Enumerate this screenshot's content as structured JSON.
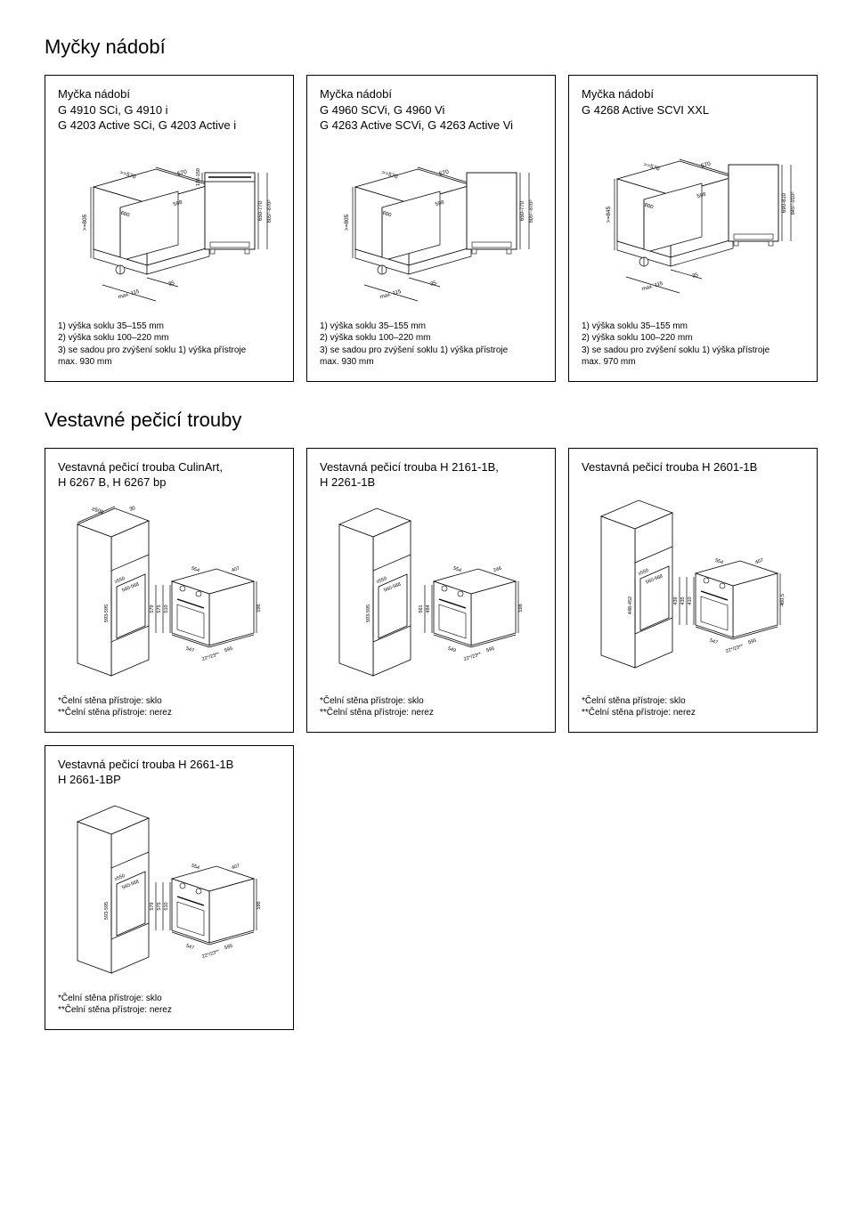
{
  "sections": {
    "dishwashers": {
      "heading": "Myčky nádobí",
      "cards": [
        {
          "title": "Myčka nádobí\nG 4910 SCi, G 4910 i\nG 4203 Active SCi, G 4203 Active i",
          "dims": {
            "width_top": "570",
            "depth_min": ">=570",
            "depth": "598",
            "depth2": "600",
            "left_h": ">=805",
            "panel_h": "116-150",
            "appliance_h": "650-770",
            "appliance_h2": "805¹⁾-870²⁾",
            "plinth_gap": "35",
            "kick": "max. 115"
          },
          "notes": "1) výška soklu 35–155 mm\n2) výška soklu 100–220 mm\n3) se sadou pro zvýšení soklu 1) výška přístroje\n    max. 930 mm"
        },
        {
          "title": "Myčka nádobí\nG 4960 SCVi, G 4960 Vi\nG 4263 Active SCVi, G 4263 Active Vi",
          "dims": {
            "width_top": "570",
            "depth_min": ">=570",
            "depth": "598",
            "depth2": "600",
            "left_h": ">=805",
            "panel_h": "",
            "appliance_h": "650-770",
            "appliance_h2": "805¹⁾-870²⁾",
            "plinth_gap": "35",
            "kick": "max. 115"
          },
          "notes": "1) výška soklu 35–155 mm\n2) výška soklu 100–220 mm\n3) se sadou pro zvýšení soklu 1) výška přístroje\n    max. 930 mm"
        },
        {
          "title": "Myčka nádobí\nG 4268 Active SCVI XXL",
          "dims": {
            "width_top": "570",
            "depth_min": ">=570",
            "depth": "598",
            "depth2": "600",
            "left_h": ">=845",
            "panel_h": "",
            "appliance_h": "690-810",
            "appliance_h2": "845¹⁾-910²⁾",
            "plinth_gap": "35",
            "kick": "max. 115"
          },
          "notes": "1) výška soklu 35–155 mm\n2) výška soklu 100–220 mm\n3) se sadou pro zvýšení soklu 1) výška přístroje\n    max. 970 mm"
        }
      ]
    },
    "ovens": {
      "heading": "Vestavné pečicí trouby",
      "cards": [
        {
          "title": "Vestavná pečicí trouba CulinArt,\nH 6267 B, H 6267 bp",
          "dims": {
            "col_w": "≥500",
            "col_gap": "30",
            "niche_h": "593-595",
            "niche_w_min": "≥550",
            "niche_w": "560-568",
            "front_w": "554",
            "front_d": "407",
            "front_h": "596",
            "h1": "510",
            "h2": "575",
            "h3": "579",
            "base_w": "595",
            "base_d": "547",
            "corner": "22*/23**"
          },
          "notes": "*Čelní stěna přístroje: sklo\n**Čelní stěna přístroje: nerez"
        },
        {
          "title": "Vestavná pečicí trouba H 2161-1B,\nH 2261-1B",
          "dims": {
            "col_w": "",
            "col_gap": "",
            "niche_h": "593-595",
            "niche_w_min": "≥550",
            "niche_w": "560-568",
            "front_w": "554",
            "front_d": "246",
            "front_h": "598",
            "h1": "484",
            "h2": "561",
            "h3": "",
            "base_w": "595",
            "base_d": "549",
            "corner": "22*/23**"
          },
          "notes": "*Čelní stěna přístroje: sklo\n**Čelní stěna přístroje: nerez"
        },
        {
          "title": "Vestavná pečicí trouba H 2601-1B",
          "dims": {
            "col_w": "",
            "col_gap": "",
            "niche_h": "448-452",
            "niche_w_min": "≥550",
            "niche_w": "560-568",
            "front_w": "554",
            "front_d": "407",
            "front_h": "460,5",
            "h1": "410",
            "h2": "435",
            "h3": "439",
            "base_w": "595",
            "base_d": "547",
            "corner": "22*/23**"
          },
          "notes": "*Čelní stěna přístroje: sklo\n**Čelní stěna přístroje: nerez"
        },
        {
          "title": "Vestavná pečicí trouba H 2661-1B\nH 2661-1BP",
          "dims": {
            "col_w": "",
            "col_gap": "",
            "niche_h": "593-595",
            "niche_w_min": "≥550",
            "niche_w": "560-568",
            "front_w": "554",
            "front_d": "407",
            "front_h": "596",
            "h1": "510",
            "h2": "575",
            "h3": "579",
            "base_w": "595",
            "base_d": "547",
            "corner": "22*/23**"
          },
          "notes": "*Čelní stěna přístroje: sklo\n**Čelní stěna přístroje: nerez"
        }
      ],
      "colors": {
        "stroke": "#000000",
        "bg": "#ffffff",
        "fontsize_label": 6
      }
    }
  }
}
